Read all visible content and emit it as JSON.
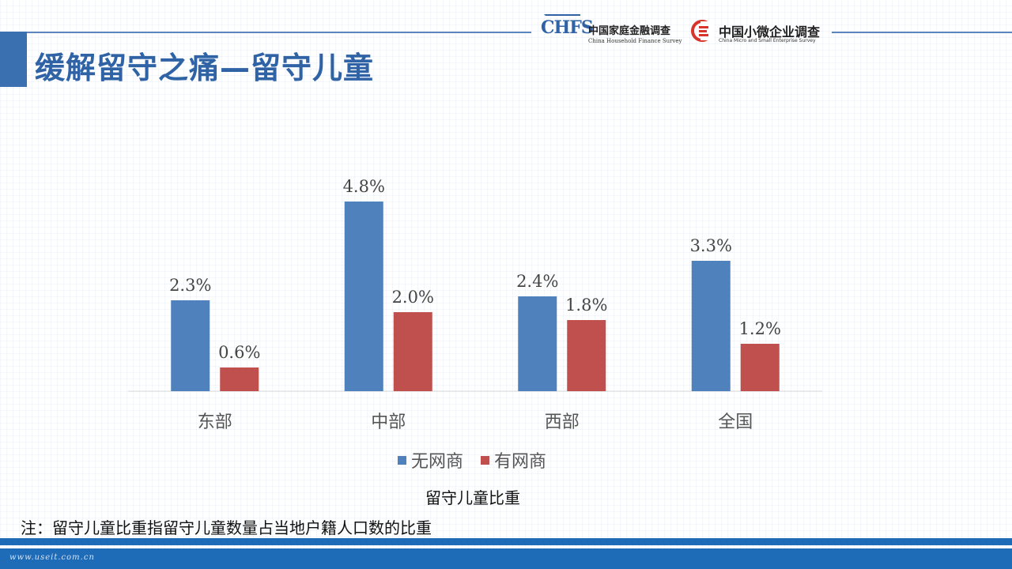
{
  "header": {
    "title": "缓解留守之痛—留守儿童",
    "chfs_logo": {
      "mark": "CHFS",
      "name_cn": "中国家庭金融调查",
      "name_en": "China Household Finance Survey"
    },
    "cmes_logo": {
      "name_cn": "中国小微企业调查",
      "name_en": "China Micro and Small Enterprise Survey"
    }
  },
  "chart_data": {
    "type": "bar",
    "categories": [
      "东部",
      "中部",
      "西部",
      "全国"
    ],
    "series": [
      {
        "name": "无网商",
        "values": [
          2.3,
          4.8,
          2.4,
          3.3
        ],
        "labels": [
          "2.3%",
          "4.8%",
          "2.4%",
          "3.3%"
        ],
        "color": "#4f81bd"
      },
      {
        "name": "有网商",
        "values": [
          0.6,
          2.0,
          1.8,
          1.2
        ],
        "labels": [
          "0.6%",
          "2.0%",
          "1.8%",
          "1.2%"
        ],
        "color": "#c0504d"
      }
    ],
    "unit": "%",
    "ylim": [
      0,
      5.3
    ],
    "grid": false,
    "legend_position": "bottom",
    "caption": "留守儿童比重"
  },
  "note": "注：留守儿童比重指留守儿童数量占当地户籍人口数的比重",
  "footer": {
    "url": "www.useit.com.cn"
  }
}
